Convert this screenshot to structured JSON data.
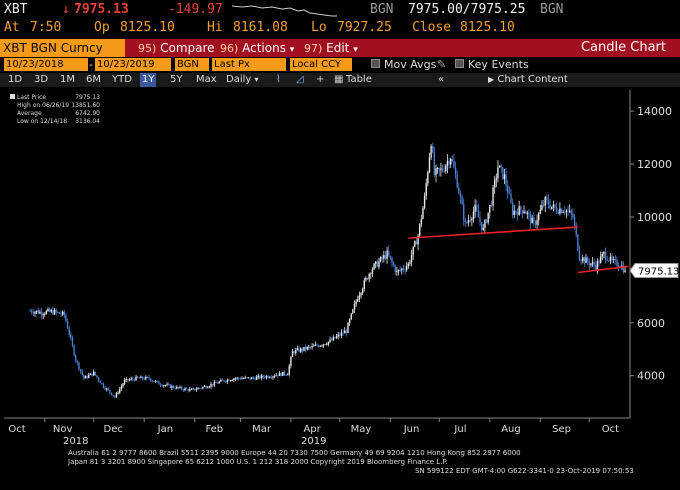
{
  "quote": {
    "ticker": "XBT",
    "arrow": "↓",
    "last": "7975.13",
    "change": "-149.97",
    "source1": "BGN",
    "bid_ask": "7975.00/7975.25",
    "source2": "BGN",
    "at_label": "At",
    "at_time": "7:50",
    "open_label": "Op",
    "open": "8125.10",
    "high_label": "Hi",
    "high": "8161.08",
    "low_label": "Lo",
    "low": "7927.25",
    "close_label": "Close",
    "close": "8125.10"
  },
  "toolbar": {
    "security": "XBT BGN Curncy",
    "compare_num": "95)",
    "compare": "Compare",
    "actions_num": "96)",
    "actions": "Actions",
    "actions_arrow": "▾",
    "edit_num": "97)",
    "edit": "Edit",
    "edit_arrow": "▾",
    "title": "Candle Chart"
  },
  "params": {
    "start": "10/23/2018",
    "end": "10/23/2019",
    "source": "BGN",
    "field": "Last Px",
    "currency": "Local CCY",
    "mov_avgs": "Mov Avgs",
    "key_events": "Key Events"
  },
  "periods": {
    "items": [
      "1D",
      "3D",
      "1M",
      "6M",
      "YTD",
      "1Y",
      "5Y",
      "Max",
      "Daily"
    ],
    "selected": "1Y",
    "daily_arrow": "▾",
    "table": "Table",
    "collapse": "«",
    "chart_content": "Chart Content"
  },
  "legend": {
    "last_price_label": "Last Price",
    "last_price": "7975.13",
    "high_label": "High on 06/26/19",
    "high": "13851.60",
    "average_label": "Average",
    "average": "6742.90",
    "low_label": "Low on 12/14/18",
    "low": "3136.04"
  },
  "chart_data": {
    "type": "candlestick",
    "title": "",
    "ylim": [
      2400,
      14800
    ],
    "y_ticks": [
      4000,
      6000,
      8000,
      10000,
      12000,
      14000
    ],
    "x_month_labels": [
      "Oct",
      "Nov",
      "Dec",
      "Jan",
      "Feb",
      "Mar",
      "Apr",
      "May",
      "Jun",
      "Jul",
      "Aug",
      "Sep",
      "Oct"
    ],
    "x_year_labels": [
      "2018",
      "2019"
    ],
    "last_price_tag": "7975.13",
    "series_points": [
      [
        "2018-10-23",
        6450
      ],
      [
        "2018-10-30",
        6400
      ],
      [
        "2018-11-06",
        6420
      ],
      [
        "2018-11-13",
        6300
      ],
      [
        "2018-11-16",
        5600
      ],
      [
        "2018-11-20",
        4600
      ],
      [
        "2018-11-25",
        3900
      ],
      [
        "2018-12-01",
        4100
      ],
      [
        "2018-12-07",
        3600
      ],
      [
        "2018-12-14",
        3200
      ],
      [
        "2018-12-20",
        3800
      ],
      [
        "2018-12-27",
        3900
      ],
      [
        "2019-01-04",
        3900
      ],
      [
        "2019-01-10",
        3700
      ],
      [
        "2019-01-20",
        3550
      ],
      [
        "2019-01-30",
        3450
      ],
      [
        "2019-02-08",
        3600
      ],
      [
        "2019-02-18",
        3800
      ],
      [
        "2019-02-25",
        3900
      ],
      [
        "2019-03-08",
        3900
      ],
      [
        "2019-03-20",
        4000
      ],
      [
        "2019-03-30",
        4100
      ],
      [
        "2019-04-02",
        4900
      ],
      [
        "2019-04-15",
        5100
      ],
      [
        "2019-04-25",
        5300
      ],
      [
        "2019-05-05",
        5700
      ],
      [
        "2019-05-12",
        7000
      ],
      [
        "2019-05-20",
        8000
      ],
      [
        "2019-05-30",
        8600
      ],
      [
        "2019-06-05",
        7900
      ],
      [
        "2019-06-12",
        8200
      ],
      [
        "2019-06-18",
        9300
      ],
      [
        "2019-06-22",
        10700
      ],
      [
        "2019-06-26",
        12900
      ],
      [
        "2019-06-28",
        11600
      ],
      [
        "2019-07-03",
        11800
      ],
      [
        "2019-07-08",
        12300
      ],
      [
        "2019-07-12",
        11300
      ],
      [
        "2019-07-17",
        9700
      ],
      [
        "2019-07-23",
        10300
      ],
      [
        "2019-07-28",
        9500
      ],
      [
        "2019-08-02",
        10600
      ],
      [
        "2019-08-06",
        11900
      ],
      [
        "2019-08-10",
        11500
      ],
      [
        "2019-08-15",
        10200
      ],
      [
        "2019-08-22",
        10300
      ],
      [
        "2019-08-28",
        9700
      ],
      [
        "2019-09-04",
        10600
      ],
      [
        "2019-09-10",
        10300
      ],
      [
        "2019-09-16",
        10300
      ],
      [
        "2019-09-21",
        10000
      ],
      [
        "2019-09-25",
        8500
      ],
      [
        "2019-09-30",
        8300
      ],
      [
        "2019-10-05",
        8150
      ],
      [
        "2019-10-10",
        8600
      ],
      [
        "2019-10-15",
        8300
      ],
      [
        "2019-10-20",
        8200
      ],
      [
        "2019-10-23",
        7975
      ]
    ],
    "trendlines": [
      {
        "color": "#e8202a",
        "from": [
          "2019-06-12",
          9200
        ],
        "to": [
          "2019-09-24",
          9620
        ]
      },
      {
        "color": "#e8202a",
        "from": [
          "2019-09-24",
          7900
        ],
        "to": [
          "2019-10-25",
          8130
        ]
      }
    ]
  },
  "footer": {
    "line1": "Australia 61 2 9777 8600 Brazil 5511 2395 9000 Europe 44 20 7330 7500 Germany 49 69 9204 1210 Hong Kong 852 2977 6000",
    "line2": "Japan 81 3 3201 8900         Singapore 65 6212 1000         U.S. 1 212 318 2000         Copyright 2019 Bloomberg Finance L.P.",
    "line3": "SN 599122 EDT  GMT-4:00 G622-3341-0 23-Oct-2019 07:50:53"
  },
  "colors": {
    "amber": "#f59a18",
    "toolbar_red": "#a01020",
    "candle_blue": "#4a7fd4",
    "candle_white": "#e8e8e8",
    "trend_red": "#e8202a"
  }
}
